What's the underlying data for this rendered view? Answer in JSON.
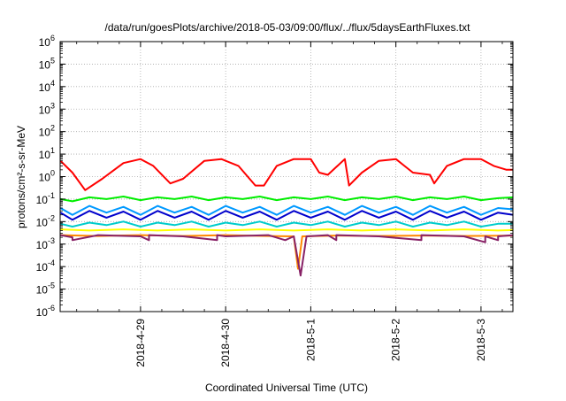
{
  "chart_data": {
    "type": "line",
    "title": "/data/run/goesPlots/archive/2018-05-03/09:00/flux/../flux/5daysEarthFluxes.txt",
    "xlabel": "Coordinated Universal Time (UTC)",
    "ylabel": "protons/cm²-s-sr-MeV",
    "y_scale": "log",
    "ylim": [
      1e-06,
      1000000.0
    ],
    "xlim": [
      "2018-04-28 01:20",
      "2018-05-03 09:00"
    ],
    "x_ticks": [
      "2018-4-29",
      "2018-4-30",
      "2018-5-1",
      "2018-5-2",
      "2018-5-3"
    ],
    "y_ticks": [
      {
        "base": "10",
        "exp": "6"
      },
      {
        "base": "10",
        "exp": "5"
      },
      {
        "base": "10",
        "exp": "4"
      },
      {
        "base": "10",
        "exp": "3"
      },
      {
        "base": "10",
        "exp": "2"
      },
      {
        "base": "10",
        "exp": "1"
      },
      {
        "base": "10",
        "exp": "0"
      },
      {
        "base": "10",
        "exp": "-1"
      },
      {
        "base": "10",
        "exp": "-2"
      },
      {
        "base": "10",
        "exp": "-3"
      },
      {
        "base": "10",
        "exp": "-4"
      },
      {
        "base": "10",
        "exp": "-5"
      },
      {
        "base": "10",
        "exp": "-6"
      }
    ],
    "grid": true,
    "legend": "none",
    "x_unit": "days since 2018-04-28 00:00 UTC",
    "series": [
      {
        "color": "#ff0000",
        "x": [
          0.06,
          0.2,
          0.35,
          0.55,
          0.8,
          1.0,
          1.15,
          1.35,
          1.5,
          1.75,
          1.95,
          2.15,
          2.35,
          2.45,
          2.6,
          2.8,
          3.0,
          3.1,
          3.2,
          3.4,
          3.45,
          3.6,
          3.8,
          4.0,
          4.1,
          4.2,
          4.4,
          4.45,
          4.6,
          4.8,
          5.0,
          5.15,
          5.3,
          5.38
        ],
        "y": [
          5,
          1.5,
          0.25,
          0.8,
          4,
          6,
          3,
          0.5,
          0.8,
          5,
          6,
          3,
          0.4,
          0.4,
          3,
          6,
          6,
          1.5,
          1.2,
          6,
          0.4,
          1.5,
          5,
          6,
          3,
          1.5,
          1.2,
          0.5,
          3,
          6,
          6,
          3,
          2,
          2
        ]
      },
      {
        "color": "#00ee00",
        "x": [
          0.06,
          0.2,
          0.4,
          0.6,
          0.8,
          1.0,
          1.2,
          1.4,
          1.6,
          1.8,
          2.0,
          2.2,
          2.4,
          2.6,
          2.8,
          3.0,
          3.2,
          3.4,
          3.6,
          3.8,
          4.0,
          4.2,
          4.4,
          4.6,
          4.8,
          5.0,
          5.2,
          5.38
        ],
        "y": [
          0.1,
          0.08,
          0.12,
          0.1,
          0.13,
          0.09,
          0.12,
          0.1,
          0.13,
          0.09,
          0.12,
          0.1,
          0.13,
          0.09,
          0.12,
          0.1,
          0.13,
          0.09,
          0.12,
          0.1,
          0.13,
          0.09,
          0.12,
          0.1,
          0.13,
          0.09,
          0.11,
          0.12
        ]
      },
      {
        "color": "#0099ff",
        "x": [
          0.06,
          0.2,
          0.4,
          0.6,
          0.8,
          1.0,
          1.2,
          1.4,
          1.6,
          1.8,
          2.0,
          2.2,
          2.4,
          2.6,
          2.8,
          3.0,
          3.2,
          3.4,
          3.6,
          3.8,
          4.0,
          4.2,
          4.4,
          4.6,
          4.8,
          5.0,
          5.2,
          5.38
        ],
        "y": [
          0.04,
          0.02,
          0.05,
          0.025,
          0.045,
          0.02,
          0.05,
          0.025,
          0.045,
          0.02,
          0.05,
          0.025,
          0.045,
          0.02,
          0.05,
          0.025,
          0.045,
          0.02,
          0.05,
          0.025,
          0.045,
          0.02,
          0.05,
          0.025,
          0.045,
          0.02,
          0.04,
          0.035
        ]
      },
      {
        "color": "#0000cc",
        "x": [
          0.06,
          0.2,
          0.4,
          0.6,
          0.8,
          1.0,
          1.2,
          1.4,
          1.6,
          1.8,
          2.0,
          2.2,
          2.4,
          2.6,
          2.8,
          3.0,
          3.2,
          3.4,
          3.6,
          3.8,
          4.0,
          4.2,
          4.4,
          4.6,
          4.8,
          5.0,
          5.2,
          5.38
        ],
        "y": [
          0.025,
          0.012,
          0.03,
          0.015,
          0.028,
          0.012,
          0.03,
          0.015,
          0.028,
          0.012,
          0.03,
          0.015,
          0.028,
          0.012,
          0.03,
          0.015,
          0.028,
          0.012,
          0.03,
          0.015,
          0.028,
          0.012,
          0.03,
          0.015,
          0.028,
          0.012,
          0.025,
          0.02
        ]
      },
      {
        "color": "#00cccc",
        "x": [
          0.06,
          0.2,
          0.4,
          0.6,
          0.8,
          1.0,
          1.2,
          1.4,
          1.6,
          1.8,
          2.0,
          2.2,
          2.4,
          2.6,
          2.8,
          3.0,
          3.2,
          3.4,
          3.6,
          3.8,
          4.0,
          4.2,
          4.4,
          4.6,
          4.8,
          5.0,
          5.2,
          5.38
        ],
        "y": [
          0.008,
          0.006,
          0.009,
          0.007,
          0.01,
          0.006,
          0.009,
          0.007,
          0.01,
          0.006,
          0.009,
          0.007,
          0.01,
          0.006,
          0.009,
          0.007,
          0.01,
          0.006,
          0.009,
          0.007,
          0.01,
          0.006,
          0.009,
          0.007,
          0.01,
          0.006,
          0.008,
          0.008
        ]
      },
      {
        "color": "#ffff00",
        "x": [
          0.06,
          0.4,
          0.8,
          1.2,
          1.6,
          2.0,
          2.4,
          2.8,
          3.2,
          3.6,
          4.0,
          4.4,
          4.8,
          5.2,
          5.38
        ],
        "y": [
          0.0045,
          0.004,
          0.0045,
          0.004,
          0.0045,
          0.004,
          0.0045,
          0.004,
          0.0045,
          0.004,
          0.0045,
          0.004,
          0.0045,
          0.004,
          0.0042
        ]
      },
      {
        "color": "#ff8800",
        "x": [
          0.06,
          0.5,
          1.0,
          1.5,
          2.0,
          2.5,
          2.8,
          2.85,
          2.9,
          3.3,
          3.8,
          4.3,
          4.8,
          5.38
        ],
        "y": [
          0.0025,
          0.0023,
          0.0025,
          0.0023,
          0.0025,
          0.0023,
          0.0022,
          8e-05,
          0.0022,
          0.0024,
          0.0023,
          0.0024,
          0.0023,
          0.0024
        ]
      },
      {
        "color": "#882266",
        "x": [
          0.06,
          0.2,
          0.2,
          0.5,
          1.0,
          1.1,
          1.1,
          1.5,
          1.9,
          1.9,
          2.0,
          2.5,
          2.7,
          2.8,
          2.88,
          2.95,
          3.2,
          3.3,
          3.3,
          3.8,
          4.3,
          4.3,
          4.8,
          5.05,
          5.05,
          5.2,
          5.2,
          5.38
        ],
        "y": [
          0.0025,
          0.002,
          0.0015,
          0.0025,
          0.0022,
          0.0015,
          0.0025,
          0.0022,
          0.0015,
          0.0025,
          0.0022,
          0.0025,
          0.0015,
          0.0022,
          4e-05,
          0.0022,
          0.0025,
          0.0015,
          0.0025,
          0.0022,
          0.0015,
          0.0025,
          0.0022,
          0.0012,
          0.0022,
          0.0015,
          0.0022,
          0.0025
        ]
      }
    ]
  }
}
